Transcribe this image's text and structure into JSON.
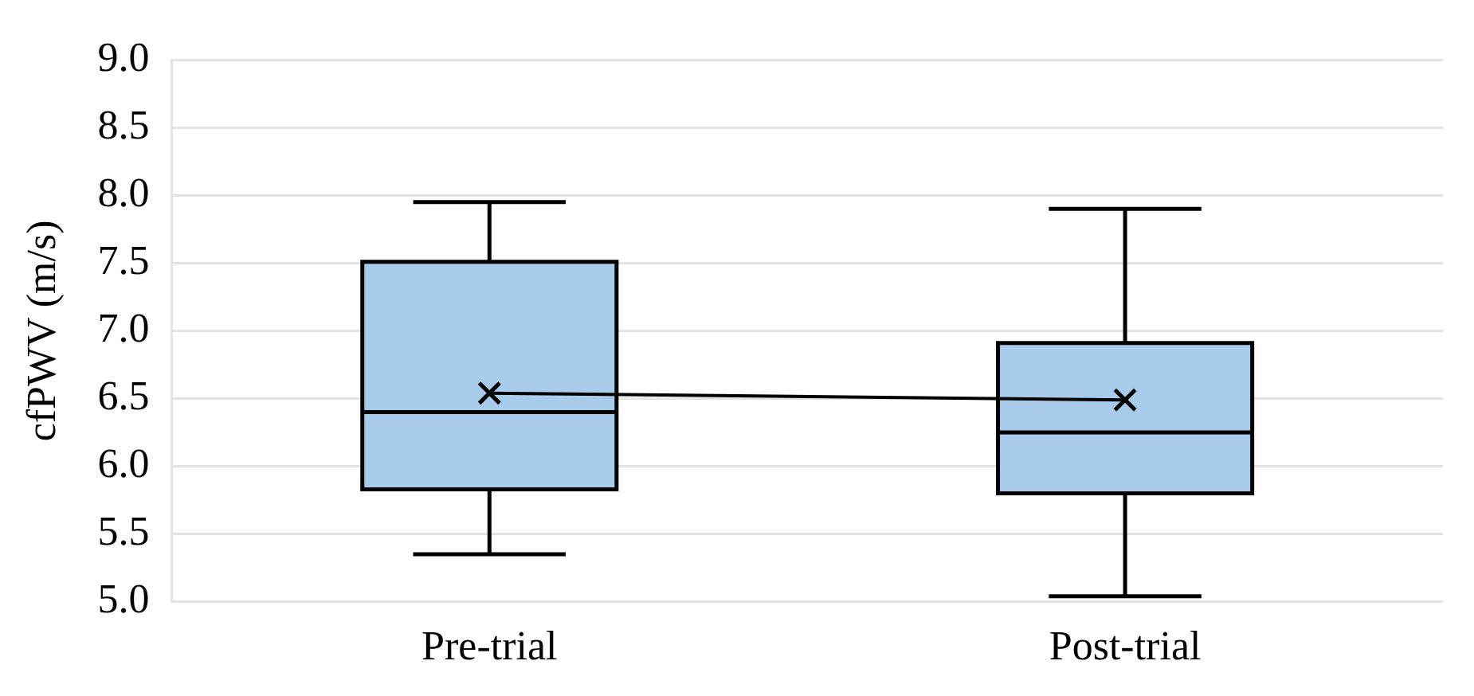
{
  "chart_data": {
    "type": "box",
    "ylabel": "cfPWV (m/s)",
    "categories": [
      "Pre-trial",
      "Post-trial"
    ],
    "series": [
      {
        "color": "#a9cbeb",
        "boxes": [
          {
            "low": 5.35,
            "q1": 5.83,
            "median": 6.4,
            "q3": 7.51,
            "high": 7.95
          },
          {
            "low": 5.04,
            "q1": 5.8,
            "median": 6.25,
            "q3": 6.91,
            "high": 7.9
          }
        ]
      },
      {
        "type": "line",
        "color": "#000000",
        "values": [
          6.54,
          6.49
        ],
        "marker": "cross"
      }
    ],
    "ylim": [
      5.0,
      9.0
    ],
    "yticks": [
      {
        "value": 5,
        "label": "5.0"
      },
      {
        "value": 5.5,
        "label": "5.5"
      },
      {
        "value": 6,
        "label": "6.0"
      },
      {
        "value": 6.5,
        "label": "6.5"
      },
      {
        "value": 7,
        "label": "7.0"
      },
      {
        "value": 7.5,
        "label": "7.5"
      },
      {
        "value": 8,
        "label": "8.0"
      },
      {
        "value": 8.5,
        "label": "8.5"
      },
      {
        "value": 9,
        "label": "9.0"
      }
    ],
    "grid": "y",
    "legend": false
  }
}
